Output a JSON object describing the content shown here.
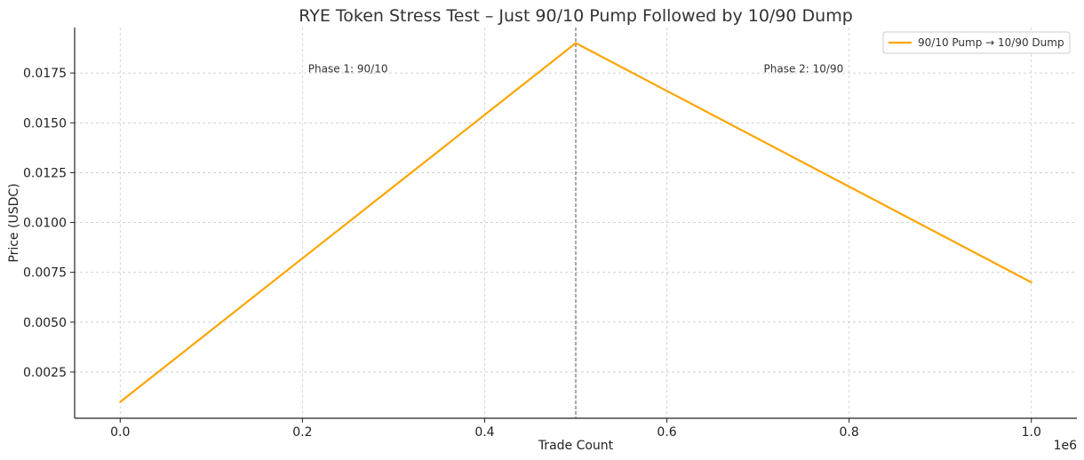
{
  "chart_data": {
    "type": "line",
    "title": "RYE Token Stress Test – Just 90/10 Pump Followed by 10/90 Dump",
    "xlabel": "Trade Count",
    "ylabel": "Price (USDC)",
    "x_offset_label": "1e6",
    "xlim": [
      -50000,
      1050000
    ],
    "ylim": [
      0.00018,
      0.01978
    ],
    "x_ticks": [
      0,
      200000,
      400000,
      600000,
      800000,
      1000000
    ],
    "x_tick_labels": [
      "0.0",
      "0.2",
      "0.4",
      "0.6",
      "0.8",
      "1.0"
    ],
    "y_ticks": [
      0.0025,
      0.005,
      0.0075,
      0.01,
      0.0125,
      0.015,
      0.0175
    ],
    "y_tick_labels": [
      "0.0025",
      "0.0050",
      "0.0075",
      "0.0100",
      "0.0125",
      "0.0150",
      "0.0175"
    ],
    "grid": true,
    "legend_position": "top-right",
    "series": [
      {
        "name": "90/10 Pump → 10/90 Dump",
        "color": "#FFA500",
        "x": [
          0,
          500000,
          1000000
        ],
        "y": [
          0.001,
          0.019,
          0.007
        ]
      }
    ],
    "vline": {
      "x": 500000,
      "color": "#555555",
      "style": "dashed"
    },
    "annotations": [
      {
        "text": "Phase 1: 90/10",
        "x": 250000,
        "y": 0.0177
      },
      {
        "text": "Phase 2: 10/90",
        "x": 750000,
        "y": 0.0177
      }
    ]
  }
}
